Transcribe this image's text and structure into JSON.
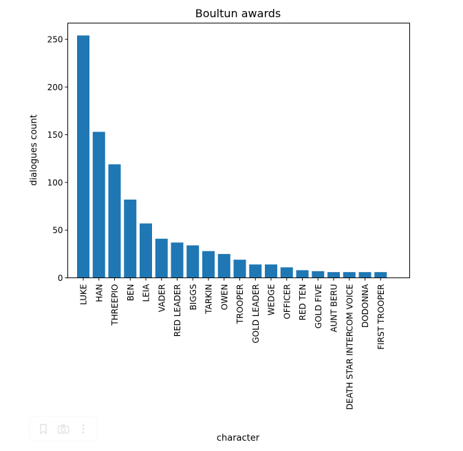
{
  "chart_data": {
    "type": "bar",
    "title": "Boultun awards",
    "xlabel": "character",
    "ylabel": "dialogues count",
    "categories": [
      "LUKE",
      "HAN",
      "THREEPIO",
      "BEN",
      "LEIA",
      "VADER",
      "RED LEADER",
      "BIGGS",
      "TARKIN",
      "OWEN",
      "TROOPER",
      "GOLD LEADER",
      "WEDGE",
      "OFFICER",
      "RED TEN",
      "GOLD FIVE",
      "AUNT BERU",
      "DEATH STAR INTERCOM VOICE",
      "DODONNA",
      "FIRST TROOPER"
    ],
    "values": [
      254,
      153,
      119,
      82,
      57,
      41,
      37,
      34,
      28,
      25,
      19,
      14,
      14,
      11,
      8,
      7,
      6,
      6,
      6,
      6
    ],
    "ylim": [
      0,
      267
    ],
    "yticks": [
      0,
      50,
      100,
      150,
      200,
      250
    ],
    "bar_color": "#1f77b4",
    "grid": false,
    "legend": "none"
  },
  "toolbar": {
    "icons": [
      "bookmark-icon",
      "camera-icon",
      "more-vert-icon"
    ]
  }
}
